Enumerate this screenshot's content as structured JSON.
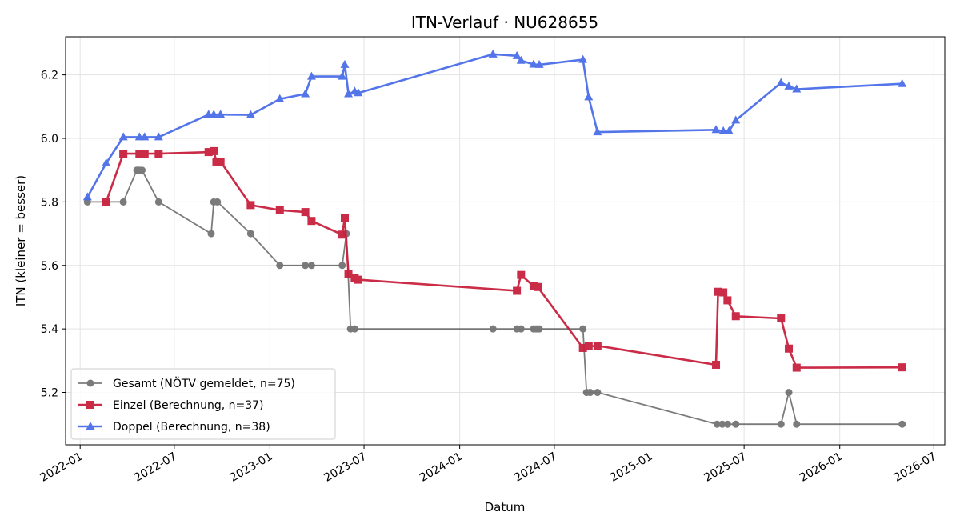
{
  "chart_data": {
    "type": "line",
    "title": "ITN-Verlauf · NU628655",
    "xlabel": "Datum",
    "ylabel": "ITN  (kleiner = besser)",
    "x_ticks": [
      "2022-01",
      "2022-07",
      "2023-01",
      "2023-07",
      "2024-01",
      "2024-07",
      "2025-01",
      "2025-07",
      "2026-01",
      "2026-07"
    ],
    "y_ticks": [
      "5.2",
      "5.4",
      "5.6",
      "5.8",
      "6.0",
      "6.2"
    ],
    "xlim": [
      "2021-12-04",
      "2026-07-22"
    ],
    "ylim": [
      5.035,
      6.32
    ],
    "grid": true,
    "legend_position": "lower-left",
    "series": [
      {
        "name": "Gesamt (NÖTV gemeldet, n=75)",
        "color": "#444444",
        "marker": "circle",
        "points": [
          [
            "2022-01-15",
            5.8
          ],
          [
            "2022-03-25",
            5.8
          ],
          [
            "2022-04-20",
            5.9
          ],
          [
            "2022-04-25",
            5.9
          ],
          [
            "2022-04-30",
            5.9
          ],
          [
            "2022-06-01",
            5.8
          ],
          [
            "2022-09-10",
            5.7
          ],
          [
            "2022-09-15",
            5.8
          ],
          [
            "2022-09-22",
            5.8
          ],
          [
            "2022-11-25",
            5.7
          ],
          [
            "2023-01-20",
            5.6
          ],
          [
            "2023-03-10",
            5.6
          ],
          [
            "2023-03-22",
            5.6
          ],
          [
            "2023-05-20",
            5.6
          ],
          [
            "2023-05-28",
            5.7
          ],
          [
            "2023-06-05",
            5.4
          ],
          [
            "2023-06-13",
            5.4
          ],
          [
            "2024-03-05",
            5.4
          ],
          [
            "2024-04-20",
            5.4
          ],
          [
            "2024-04-28",
            5.4
          ],
          [
            "2024-05-22",
            5.4
          ],
          [
            "2024-05-27",
            5.4
          ],
          [
            "2024-06-02",
            5.4
          ],
          [
            "2024-08-25",
            5.4
          ],
          [
            "2024-09-01",
            5.2
          ],
          [
            "2024-09-08",
            5.2
          ],
          [
            "2024-09-22",
            5.2
          ],
          [
            "2025-05-10",
            5.1
          ],
          [
            "2025-05-20",
            5.1
          ],
          [
            "2025-05-30",
            5.1
          ],
          [
            "2025-06-15",
            5.1
          ],
          [
            "2025-09-10",
            5.1
          ],
          [
            "2025-09-25",
            5.2
          ],
          [
            "2025-10-10",
            5.1
          ],
          [
            "2026-05-01",
            5.1
          ]
        ]
      },
      {
        "name": "Einzel (Berechnung, n=37)",
        "color": "#c8213e",
        "marker": "square",
        "points": [
          [
            "2022-02-20",
            5.8
          ],
          [
            "2022-03-25",
            5.952
          ],
          [
            "2022-04-25",
            5.952
          ],
          [
            "2022-05-05",
            5.952
          ],
          [
            "2022-06-01",
            5.952
          ],
          [
            "2022-09-05",
            5.957
          ],
          [
            "2022-09-15",
            5.96
          ],
          [
            "2022-09-20",
            5.927
          ],
          [
            "2022-09-28",
            5.927
          ],
          [
            "2022-11-25",
            5.79
          ],
          [
            "2023-01-20",
            5.774
          ],
          [
            "2023-03-10",
            5.768
          ],
          [
            "2023-03-22",
            5.74
          ],
          [
            "2023-05-20",
            5.697
          ],
          [
            "2023-05-25",
            5.75
          ],
          [
            "2023-06-01",
            5.572
          ],
          [
            "2023-06-13",
            5.56
          ],
          [
            "2023-06-20",
            5.555
          ],
          [
            "2024-04-20",
            5.52
          ],
          [
            "2024-04-28",
            5.57
          ],
          [
            "2024-05-22",
            5.535
          ],
          [
            "2024-05-30",
            5.532
          ],
          [
            "2024-08-25",
            5.34
          ],
          [
            "2024-09-05",
            5.345
          ],
          [
            "2024-09-22",
            5.347
          ],
          [
            "2025-05-08",
            5.287
          ],
          [
            "2025-05-12",
            5.517
          ],
          [
            "2025-05-22",
            5.515
          ],
          [
            "2025-05-30",
            5.49
          ],
          [
            "2025-06-15",
            5.44
          ],
          [
            "2025-09-10",
            5.433
          ],
          [
            "2025-09-25",
            5.338
          ],
          [
            "2025-10-10",
            5.278
          ],
          [
            "2026-05-01",
            5.279
          ]
        ]
      },
      {
        "name": "Doppel (Berechnung, n=38)",
        "color": "#4a6ee8",
        "marker": "triangle",
        "points": [
          [
            "2022-01-15",
            5.815
          ],
          [
            "2022-02-20",
            5.922
          ],
          [
            "2022-03-25",
            6.004
          ],
          [
            "2022-04-25",
            6.004
          ],
          [
            "2022-05-05",
            6.004
          ],
          [
            "2022-06-01",
            6.004
          ],
          [
            "2022-09-05",
            6.075
          ],
          [
            "2022-09-15",
            6.075
          ],
          [
            "2022-09-28",
            6.075
          ],
          [
            "2022-11-25",
            6.074
          ],
          [
            "2023-01-20",
            6.124
          ],
          [
            "2023-03-10",
            6.14
          ],
          [
            "2023-03-22",
            6.195
          ],
          [
            "2023-05-20",
            6.195
          ],
          [
            "2023-05-25",
            6.232
          ],
          [
            "2023-06-01",
            6.14
          ],
          [
            "2023-06-13",
            6.148
          ],
          [
            "2023-06-20",
            6.143
          ],
          [
            "2024-03-05",
            6.265
          ],
          [
            "2024-04-20",
            6.26
          ],
          [
            "2024-04-28",
            6.245
          ],
          [
            "2024-05-22",
            6.233
          ],
          [
            "2024-06-02",
            6.232
          ],
          [
            "2024-08-25",
            6.248
          ],
          [
            "2024-09-05",
            6.13
          ],
          [
            "2024-09-22",
            6.02
          ],
          [
            "2025-05-08",
            6.027
          ],
          [
            "2025-05-22",
            6.023
          ],
          [
            "2025-06-02",
            6.023
          ],
          [
            "2025-06-15",
            6.057
          ],
          [
            "2025-09-10",
            6.175
          ],
          [
            "2025-09-25",
            6.164
          ],
          [
            "2025-10-10",
            6.155
          ],
          [
            "2026-05-01",
            6.172
          ]
        ]
      }
    ]
  }
}
